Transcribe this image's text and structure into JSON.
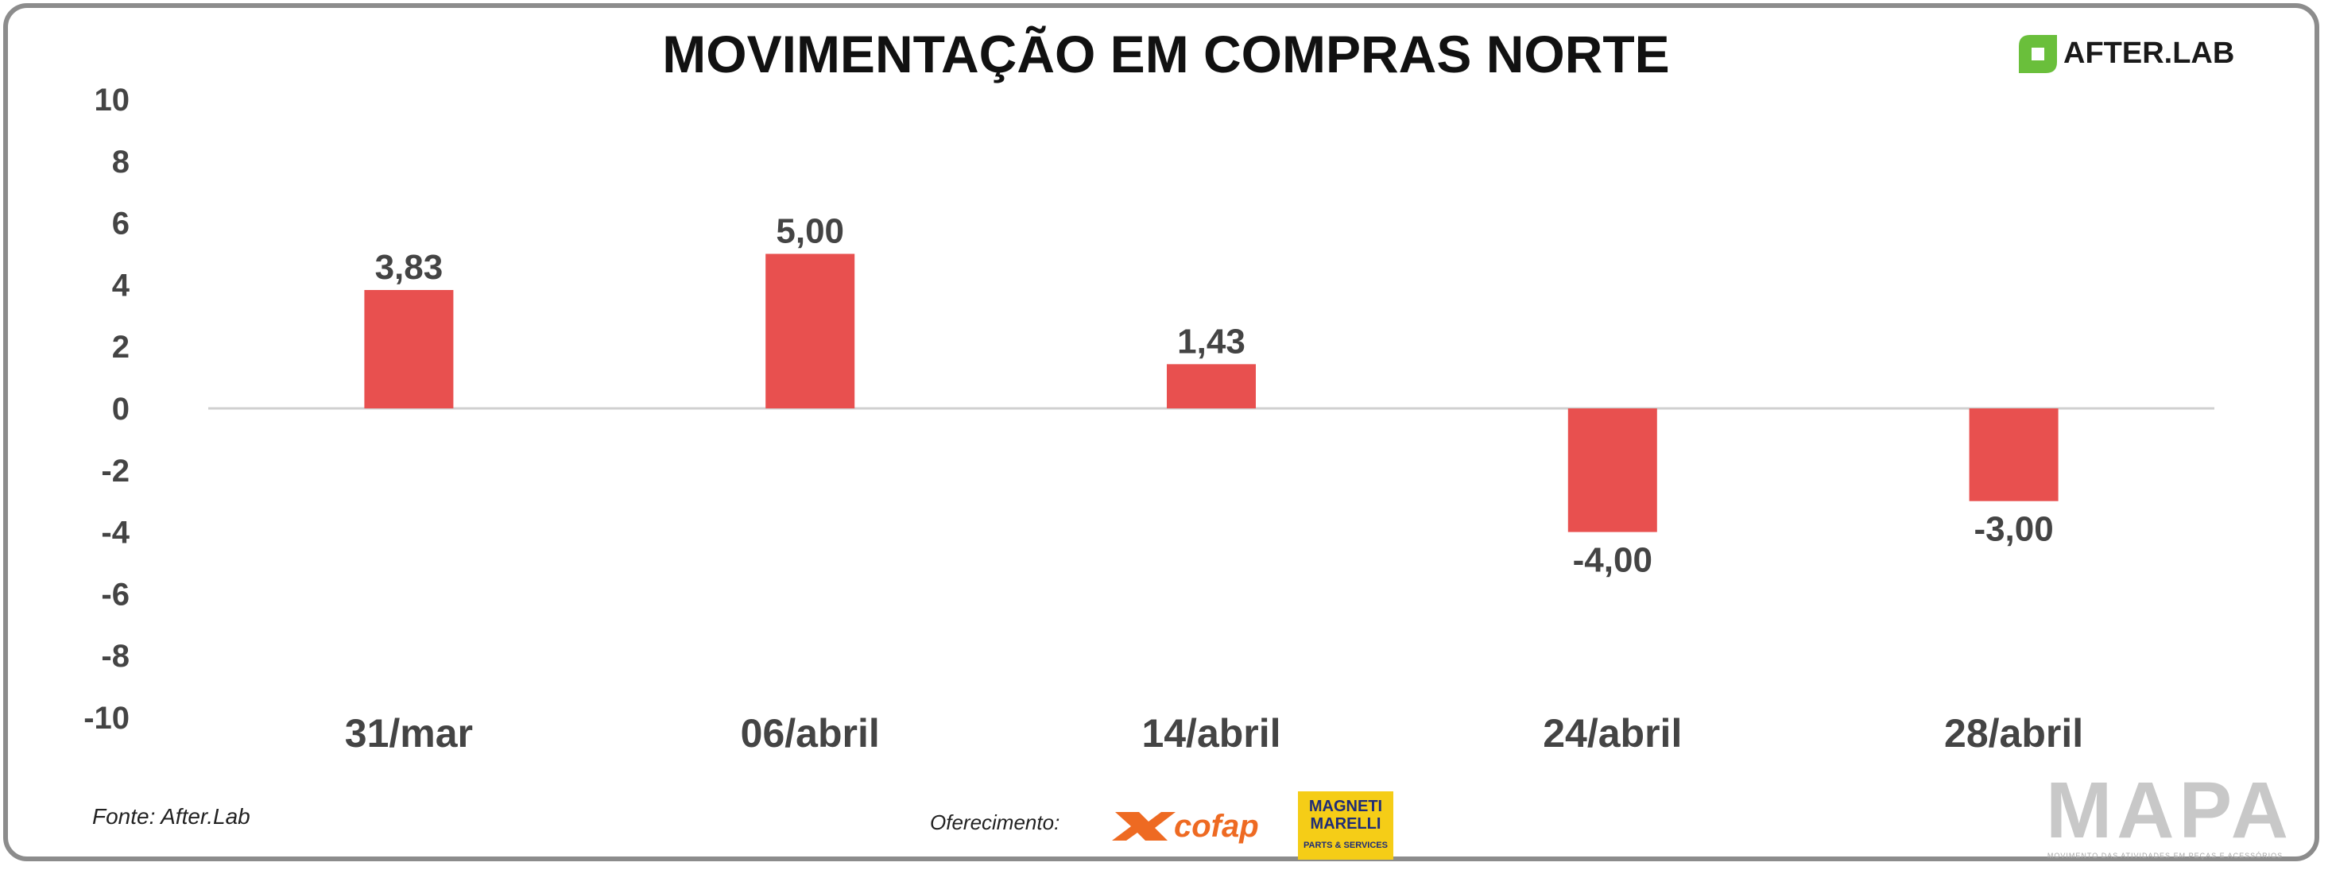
{
  "title": "MOVIMENTAÇÃO EM COMPRAS NORTE",
  "brand": {
    "afterlab": "AFTER.LAB",
    "afterlab_color": "#6abf3b",
    "mapa": "MAPA",
    "mapa_tagline": "MOVIMENTO DAS ATIVIDADES EM PEÇAS E ACESSÓRIOS"
  },
  "footer": {
    "source": "Fonte: After.Lab",
    "offer": "Oferecimento:",
    "cofap": "cofap",
    "magneti": "MAGNETI\nMARELLI",
    "magneti_sub": "PARTS & SERVICES"
  },
  "colors": {
    "bar": "#e8504f",
    "axis": "#d0d0d0",
    "frame": "#8c8c8c"
  },
  "chart_data": {
    "type": "bar",
    "title": "MOVIMENTAÇÃO EM COMPRAS NORTE",
    "categories": [
      "31/mar",
      "06/abril",
      "14/abril",
      "24/abril",
      "28/abril"
    ],
    "values": [
      3.83,
      5.0,
      1.43,
      -4.0,
      -3.0
    ],
    "value_labels": [
      "3,83",
      "5,00",
      "1,43",
      "-4,00",
      "-3,00"
    ],
    "ylim": [
      -10,
      10
    ],
    "yticks": [
      10,
      8,
      6,
      4,
      2,
      0,
      -2,
      -4,
      -6,
      -8,
      -10
    ],
    "grid": false,
    "legend": "none"
  }
}
